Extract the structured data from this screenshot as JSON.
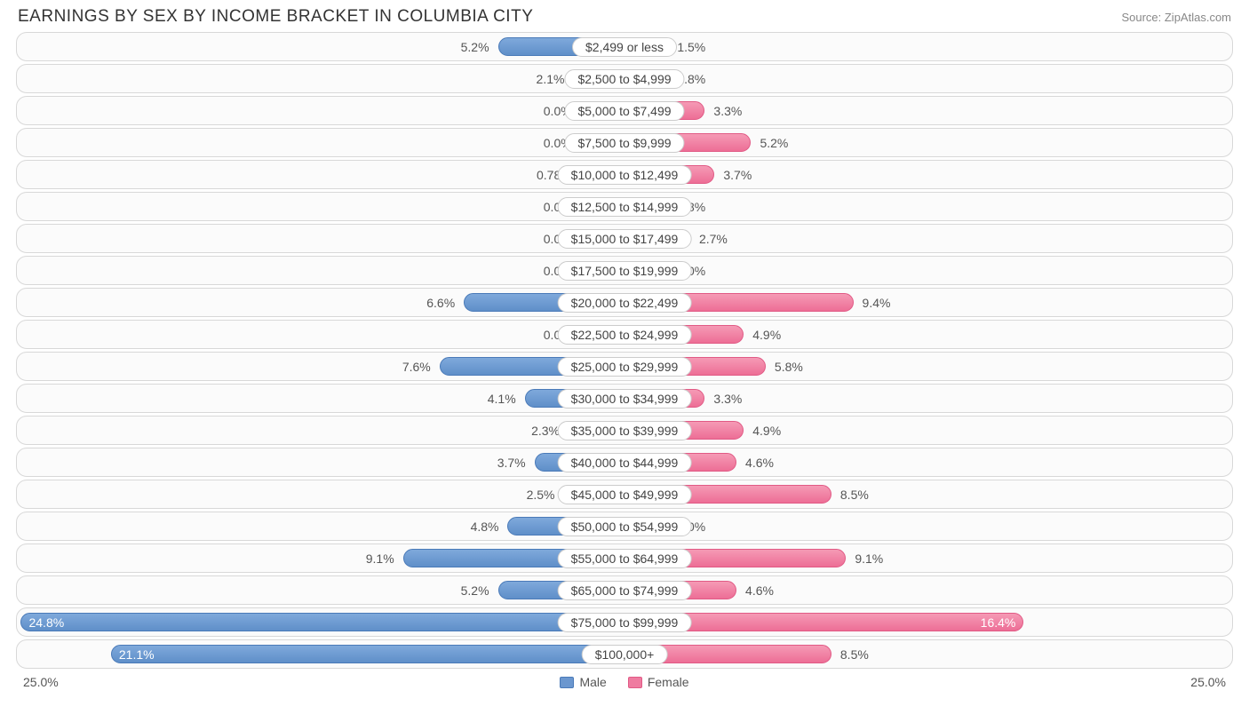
{
  "title": "EARNINGS BY SEX BY INCOME BRACKET IN COLUMBIA CITY",
  "source": "Source: ZipAtlas.com",
  "axis_max": 25.0,
  "axis_left_label": "25.0%",
  "axis_right_label": "25.0%",
  "legend": {
    "male": "Male",
    "female": "Female"
  },
  "colors": {
    "male_fill_top": "#7fa9db",
    "male_fill_bottom": "#5f8fc9",
    "male_border": "#4a7ab8",
    "female_fill_top": "#f59ab5",
    "female_fill_bottom": "#ed6e96",
    "female_border": "#e15a85",
    "row_border": "#d8d8d8",
    "row_bg": "#fbfbfb",
    "text": "#555555",
    "title_color": "#333333",
    "source_color": "#888888",
    "background": "#ffffff"
  },
  "min_bar_pct": 1.8,
  "inside_threshold": 15.0,
  "rows": [
    {
      "category": "$2,499 or less",
      "male": 5.2,
      "female": 1.5,
      "male_label": "5.2%",
      "female_label": "1.5%"
    },
    {
      "category": "$2,500 to $4,999",
      "male": 2.1,
      "female": 1.8,
      "male_label": "2.1%",
      "female_label": "1.8%"
    },
    {
      "category": "$5,000 to $7,499",
      "male": 0.0,
      "female": 3.3,
      "male_label": "0.0%",
      "female_label": "3.3%"
    },
    {
      "category": "$7,500 to $9,999",
      "male": 0.0,
      "female": 5.2,
      "male_label": "0.0%",
      "female_label": "5.2%"
    },
    {
      "category": "$10,000 to $12,499",
      "male": 0.78,
      "female": 3.7,
      "male_label": "0.78%",
      "female_label": "3.7%"
    },
    {
      "category": "$12,500 to $14,999",
      "male": 0.0,
      "female": 1.8,
      "male_label": "0.0%",
      "female_label": "1.8%"
    },
    {
      "category": "$15,000 to $17,499",
      "male": 0.0,
      "female": 2.7,
      "male_label": "0.0%",
      "female_label": "2.7%"
    },
    {
      "category": "$17,500 to $19,999",
      "male": 0.0,
      "female": 0.0,
      "male_label": "0.0%",
      "female_label": "0.0%"
    },
    {
      "category": "$20,000 to $22,499",
      "male": 6.6,
      "female": 9.4,
      "male_label": "6.6%",
      "female_label": "9.4%"
    },
    {
      "category": "$22,500 to $24,999",
      "male": 0.0,
      "female": 4.9,
      "male_label": "0.0%",
      "female_label": "4.9%"
    },
    {
      "category": "$25,000 to $29,999",
      "male": 7.6,
      "female": 5.8,
      "male_label": "7.6%",
      "female_label": "5.8%"
    },
    {
      "category": "$30,000 to $34,999",
      "male": 4.1,
      "female": 3.3,
      "male_label": "4.1%",
      "female_label": "3.3%"
    },
    {
      "category": "$35,000 to $39,999",
      "male": 2.3,
      "female": 4.9,
      "male_label": "2.3%",
      "female_label": "4.9%"
    },
    {
      "category": "$40,000 to $44,999",
      "male": 3.7,
      "female": 4.6,
      "male_label": "3.7%",
      "female_label": "4.6%"
    },
    {
      "category": "$45,000 to $49,999",
      "male": 2.5,
      "female": 8.5,
      "male_label": "2.5%",
      "female_label": "8.5%"
    },
    {
      "category": "$50,000 to $54,999",
      "male": 4.8,
      "female": 0.0,
      "male_label": "4.8%",
      "female_label": "0.0%"
    },
    {
      "category": "$55,000 to $64,999",
      "male": 9.1,
      "female": 9.1,
      "male_label": "9.1%",
      "female_label": "9.1%"
    },
    {
      "category": "$65,000 to $74,999",
      "male": 5.2,
      "female": 4.6,
      "male_label": "5.2%",
      "female_label": "4.6%"
    },
    {
      "category": "$75,000 to $99,999",
      "male": 24.8,
      "female": 16.4,
      "male_label": "24.8%",
      "female_label": "16.4%"
    },
    {
      "category": "$100,000+",
      "male": 21.1,
      "female": 8.5,
      "male_label": "21.1%",
      "female_label": "8.5%"
    }
  ]
}
